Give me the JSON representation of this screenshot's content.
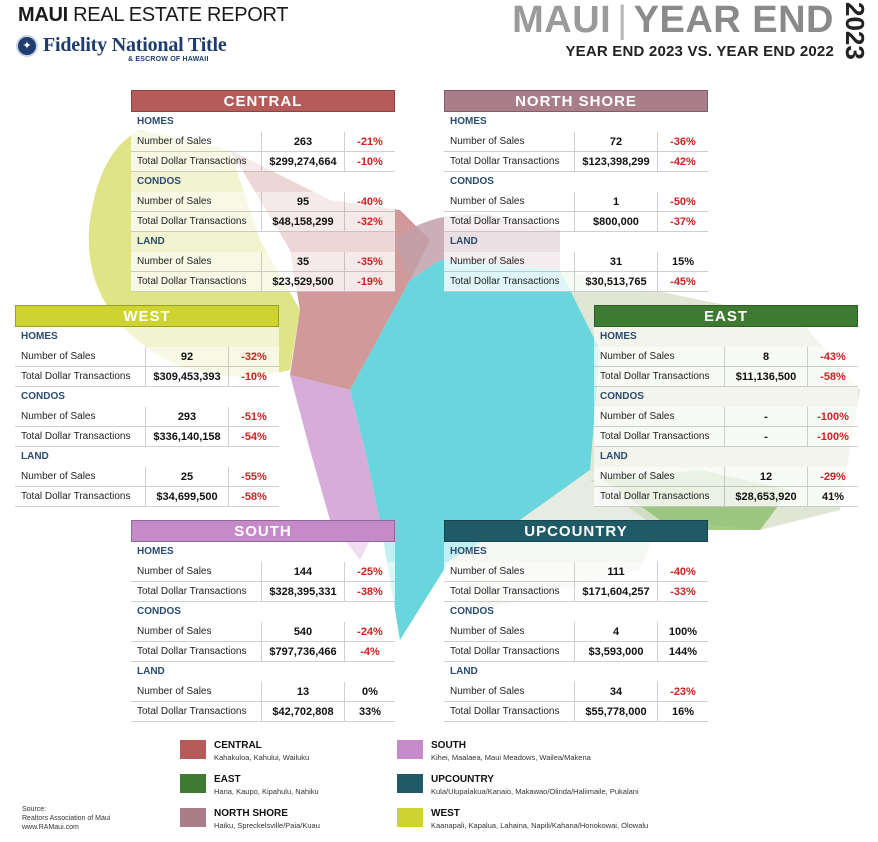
{
  "header": {
    "report_bold": "MAUI",
    "report_rest": " REAL ESTATE REPORT",
    "brand_name": "Fidelity National Title",
    "brand_sub": "& ESCROW OF HAWAII",
    "head_island": "MAUI",
    "head_divider": "|",
    "head_period": "YEAR END",
    "year": "2023",
    "subtitle": "YEAR END 2023 VS. YEAR END 2022"
  },
  "labels": {
    "homes": "HOMES",
    "condos": "CONDOS",
    "land": "LAND",
    "sales": "Number of Sales",
    "dollars": "Total Dollar Transactions"
  },
  "regions": {
    "central": {
      "name": "CENTRAL",
      "color": "#b65a5a",
      "homes": {
        "sales": "263",
        "sales_pct": "-21%",
        "dollars": "$299,274,664",
        "dollars_pct": "-10%"
      },
      "condos": {
        "sales": "95",
        "sales_pct": "-40%",
        "dollars": "$48,158,299",
        "dollars_pct": "-32%"
      },
      "land": {
        "sales": "35",
        "sales_pct": "-35%",
        "dollars": "$23,529,500",
        "dollars_pct": "-19%"
      }
    },
    "north_shore": {
      "name": "NORTH SHORE",
      "color": "#a97e8a",
      "homes": {
        "sales": "72",
        "sales_pct": "-36%",
        "dollars": "$123,398,299",
        "dollars_pct": "-42%"
      },
      "condos": {
        "sales": "1",
        "sales_pct": "-50%",
        "dollars": "$800,000",
        "dollars_pct": "-37%"
      },
      "land": {
        "sales": "31",
        "sales_pct": "15%",
        "dollars": "$30,513,765",
        "dollars_pct": "-45%"
      }
    },
    "west": {
      "name": "WEST",
      "color": "#cdd430",
      "homes": {
        "sales": "92",
        "sales_pct": "-32%",
        "dollars": "$309,453,393",
        "dollars_pct": "-10%"
      },
      "condos": {
        "sales": "293",
        "sales_pct": "-51%",
        "dollars": "$336,140,158",
        "dollars_pct": "-54%"
      },
      "land": {
        "sales": "25",
        "sales_pct": "-55%",
        "dollars": "$34,699,500",
        "dollars_pct": "-58%"
      }
    },
    "east": {
      "name": "EAST",
      "color": "#3f7a32",
      "homes": {
        "sales": "8",
        "sales_pct": "-43%",
        "dollars": "$11,136,500",
        "dollars_pct": "-58%"
      },
      "condos": {
        "sales": "-",
        "sales_pct": "-100%",
        "dollars": "-",
        "dollars_pct": "-100%"
      },
      "land": {
        "sales": "12",
        "sales_pct": "-29%",
        "dollars": "$28,653,920",
        "dollars_pct": "41%"
      }
    },
    "south": {
      "name": "SOUTH",
      "color": "#c58ac8",
      "homes": {
        "sales": "144",
        "sales_pct": "-25%",
        "dollars": "$328,395,331",
        "dollars_pct": "-38%"
      },
      "condos": {
        "sales": "540",
        "sales_pct": "-24%",
        "dollars": "$797,736,466",
        "dollars_pct": "-4%"
      },
      "land": {
        "sales": "13",
        "sales_pct": "0%",
        "dollars": "$42,702,808",
        "dollars_pct": "33%"
      }
    },
    "upcountry": {
      "name": "UPCOUNTRY",
      "color": "#1f5a66",
      "homes": {
        "sales": "111",
        "sales_pct": "-40%",
        "dollars": "$171,604,257",
        "dollars_pct": "-33%"
      },
      "condos": {
        "sales": "4",
        "sales_pct": "100%",
        "dollars": "$3,593,000",
        "dollars_pct": "144%"
      },
      "land": {
        "sales": "34",
        "sales_pct": "-23%",
        "dollars": "$55,778,000",
        "dollars_pct": "16%"
      }
    }
  },
  "legend": [
    {
      "name": "CENTRAL",
      "areas": "Kahakuloa, Kahului, Wailuku",
      "color": "#b65a5a"
    },
    {
      "name": "SOUTH",
      "areas": "Kihei, Maalaea, Maui Meadows, Wailea/Makena",
      "color": "#c58ac8"
    },
    {
      "name": "EAST",
      "areas": "Hana, Kaupo, Kipahulu, Nahiku",
      "color": "#3f7a32"
    },
    {
      "name": "UPCOUNTRY",
      "areas": "Kula/Ulupalakua/Kanaio, Makawao/Olinda/Haliimaile, Pukalani",
      "color": "#1f5a66"
    },
    {
      "name": "NORTH SHORE",
      "areas": "Haiku, Spreckelsville/Paia/Kuau",
      "color": "#a97e8a"
    },
    {
      "name": "WEST",
      "areas": "Kaanapali, Kapalua, Lahaina, Napili/Kahana/Honokowai, Olowalu",
      "color": "#cdd430"
    }
  ],
  "source": {
    "line1": "Source:",
    "line2": "Realtors Association of Maui",
    "line3": "www.RAMaui.com"
  }
}
